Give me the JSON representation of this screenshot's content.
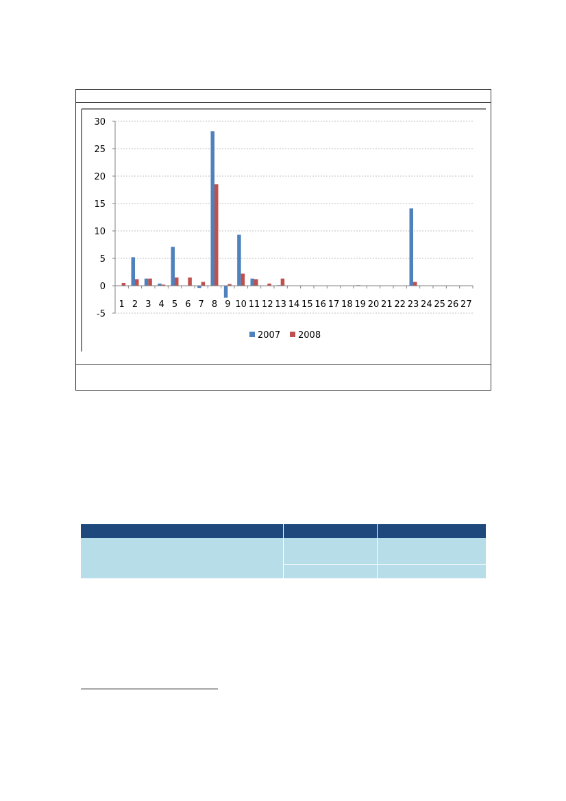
{
  "chart_data": {
    "type": "bar",
    "categories": [
      "1",
      "2",
      "3",
      "4",
      "5",
      "6",
      "7",
      "8",
      "9",
      "10",
      "11",
      "12",
      "13",
      "14",
      "15",
      "16",
      "17",
      "18",
      "19",
      "20",
      "21",
      "22",
      "23",
      "24",
      "25",
      "26",
      "27"
    ],
    "series": [
      {
        "name": "2007",
        "color": "#4f81bd",
        "values": [
          0,
          5.2,
          1.3,
          0.4,
          7.1,
          0,
          -0.4,
          28.2,
          -2.2,
          9.3,
          1.3,
          0,
          0.1,
          0,
          0,
          0,
          0,
          0,
          0.1,
          0,
          0,
          0,
          14.1,
          0,
          0,
          0,
          0
        ]
      },
      {
        "name": "2008",
        "color": "#c0504d",
        "values": [
          0.5,
          1.2,
          1.3,
          0.2,
          1.5,
          1.5,
          0.7,
          18.5,
          0.3,
          2.2,
          1.2,
          0.4,
          1.3,
          0,
          0,
          0,
          0,
          0,
          0,
          0,
          0,
          0,
          0.7,
          0,
          0,
          0,
          0
        ]
      }
    ],
    "yticks": [
      "30",
      "25",
      "20",
      "15",
      "10",
      "5",
      "0",
      "-5"
    ],
    "ylim": [
      -5,
      30
    ],
    "grid": true,
    "legend_position": "bottom",
    "title": "",
    "xlabel": "",
    "ylabel": ""
  },
  "table": {
    "header_color": "#1f497d",
    "body_color": "#b7dde8"
  }
}
